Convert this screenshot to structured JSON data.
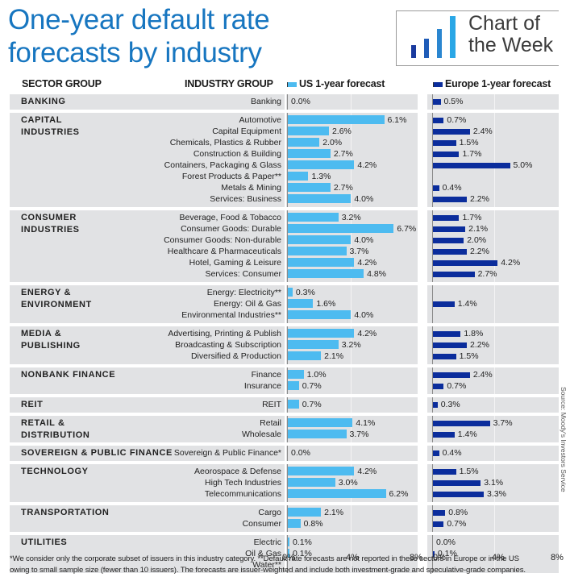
{
  "title_lines": [
    "One-year default rate",
    "forecasts by industry"
  ],
  "logo": {
    "line1": "Chart of",
    "line2": "the Week",
    "bar_colors": [
      "#1a3a9e",
      "#1f5cb8",
      "#2a86d0",
      "#2aa7e6"
    ]
  },
  "headers": {
    "sector": "SECTOR GROUP",
    "industry": "INDUSTRY GROUP",
    "us_legend": "US 1-year forecast",
    "eu_legend": "Europe 1-year forecast"
  },
  "colors": {
    "us": "#4dbbf0",
    "eu": "#0b2d9c",
    "panel": "#e1e2e4",
    "title": "#1776c0"
  },
  "axis_ticks": [
    "0%",
    "4%",
    "8%"
  ],
  "footnote_lines": [
    "*We consider only the corporate subset of issuers in this industry category. **Default rate forecasts are not reported in these sectors in Europe or in the US",
    "owing to small sample size (fewer than 10 issuers). The forecasts are issuer-weighted and include both investment-grade and speculative-grade companies."
  ],
  "source": "Source: Moody's Investors Service",
  "chart_data": {
    "type": "bar",
    "orientation": "horizontal",
    "title": "One-year default rate forecasts by industry",
    "xlabel": "",
    "ylabel": "",
    "xlim": [
      0,
      8
    ],
    "x_ticks": [
      "0%",
      "4%",
      "8%"
    ],
    "grid": true,
    "legend": [
      "US 1-year forecast",
      "Europe 1-year forecast"
    ],
    "legend_position": "top",
    "groups": [
      {
        "sector": "BANKING",
        "sector_lines": [
          "BANKING"
        ],
        "industries": [
          {
            "name": "Banking",
            "us": 0.0,
            "eu": 0.5
          }
        ]
      },
      {
        "sector": "CAPITAL INDUSTRIES",
        "sector_lines": [
          "CAPITAL",
          "INDUSTRIES"
        ],
        "industries": [
          {
            "name": "Automotive",
            "us": 6.1,
            "eu": 0.7
          },
          {
            "name": "Capital Equipment",
            "us": 2.6,
            "eu": 2.4
          },
          {
            "name": "Chemicals, Plastics & Rubber",
            "us": 2.0,
            "eu": 1.5
          },
          {
            "name": "Construction & Building",
            "us": 2.7,
            "eu": 1.7
          },
          {
            "name": "Containers, Packaging & Glass",
            "us": 4.2,
            "eu": 5.0
          },
          {
            "name": "Forest Products & Paper**",
            "us": 1.3,
            "eu": null
          },
          {
            "name": "Metals & Mining",
            "us": 2.7,
            "eu": 0.4
          },
          {
            "name": "Services: Business",
            "us": 4.0,
            "eu": 2.2
          }
        ]
      },
      {
        "sector": "CONSUMER INDUSTRIES",
        "sector_lines": [
          "CONSUMER",
          "INDUSTRIES"
        ],
        "industries": [
          {
            "name": "Beverage, Food & Tobacco",
            "us": 3.2,
            "eu": 1.7
          },
          {
            "name": "Consumer Goods: Durable",
            "us": 6.7,
            "eu": 2.1
          },
          {
            "name": "Consumer Goods: Non-durable",
            "us": 4.0,
            "eu": 2.0
          },
          {
            "name": "Healthcare & Pharmaceuticals",
            "us": 3.7,
            "eu": 2.2
          },
          {
            "name": "Hotel, Gaming & Leisure",
            "us": 4.2,
            "eu": 4.2
          },
          {
            "name": "Services: Consumer",
            "us": 4.8,
            "eu": 2.7
          }
        ]
      },
      {
        "sector": "ENERGY & ENVIRONMENT",
        "sector_lines": [
          "ENERGY &",
          "ENVIRONMENT"
        ],
        "industries": [
          {
            "name": "Energy: Electricity**",
            "us": 0.3,
            "eu": null
          },
          {
            "name": "Energy: Oil & Gas",
            "us": 1.6,
            "eu": 1.4
          },
          {
            "name": "Environmental Industries**",
            "us": 4.0,
            "eu": null
          }
        ]
      },
      {
        "sector": "MEDIA & PUBLISHING",
        "sector_lines": [
          "MEDIA &",
          "PUBLISHING"
        ],
        "industries": [
          {
            "name": "Advertising, Printing & Publish",
            "us": 4.2,
            "eu": 1.8
          },
          {
            "name": "Broadcasting & Subscription",
            "us": 3.2,
            "eu": 2.2
          },
          {
            "name": "Diversified & Production",
            "us": 2.1,
            "eu": 1.5
          }
        ]
      },
      {
        "sector": "NONBANK FINANCE",
        "sector_lines": [
          "NONBANK FINANCE"
        ],
        "industries": [
          {
            "name": "Finance",
            "us": 1.0,
            "eu": 2.4
          },
          {
            "name": "Insurance",
            "us": 0.7,
            "eu": 0.7
          }
        ]
      },
      {
        "sector": "REIT",
        "sector_lines": [
          "REIT"
        ],
        "industries": [
          {
            "name": "REIT",
            "us": 0.7,
            "eu": 0.3
          }
        ]
      },
      {
        "sector": "RETAIL & DISTRIBUTION",
        "sector_lines": [
          "RETAIL &",
          "DISTRIBUTION"
        ],
        "industries": [
          {
            "name": "Retail",
            "us": 4.1,
            "eu": 3.7
          },
          {
            "name": "Wholesale",
            "us": 3.7,
            "eu": 1.4
          }
        ]
      },
      {
        "sector": "SOVEREIGN & PUBLIC FINANCE",
        "sector_lines": [
          "SOVEREIGN & PUBLIC FINANCE"
        ],
        "industries": [
          {
            "name": "Sovereign & Public Finance*",
            "us": 0.0,
            "eu": 0.4
          }
        ]
      },
      {
        "sector": "TECHNOLOGY",
        "sector_lines": [
          "TECHNOLOGY"
        ],
        "industries": [
          {
            "name": "Aeorospace & Defense",
            "us": 4.2,
            "eu": 1.5
          },
          {
            "name": "High Tech Industries",
            "us": 3.0,
            "eu": 3.1
          },
          {
            "name": "Telecommunications",
            "us": 6.2,
            "eu": 3.3
          }
        ]
      },
      {
        "sector": "TRANSPORTATION",
        "sector_lines": [
          "TRANSPORTATION"
        ],
        "industries": [
          {
            "name": "Cargo",
            "us": 2.1,
            "eu": 0.8
          },
          {
            "name": "Consumer",
            "us": 0.8,
            "eu": 0.7
          }
        ]
      },
      {
        "sector": "UTILITIES",
        "sector_lines": [
          "UTILITIES"
        ],
        "industries": [
          {
            "name": "Electric",
            "us": 0.1,
            "eu": 0.0
          },
          {
            "name": "Oil & Gas",
            "us": 0.1,
            "eu": 0.1
          },
          {
            "name": "Water**",
            "us": null,
            "eu": null
          }
        ]
      }
    ]
  }
}
